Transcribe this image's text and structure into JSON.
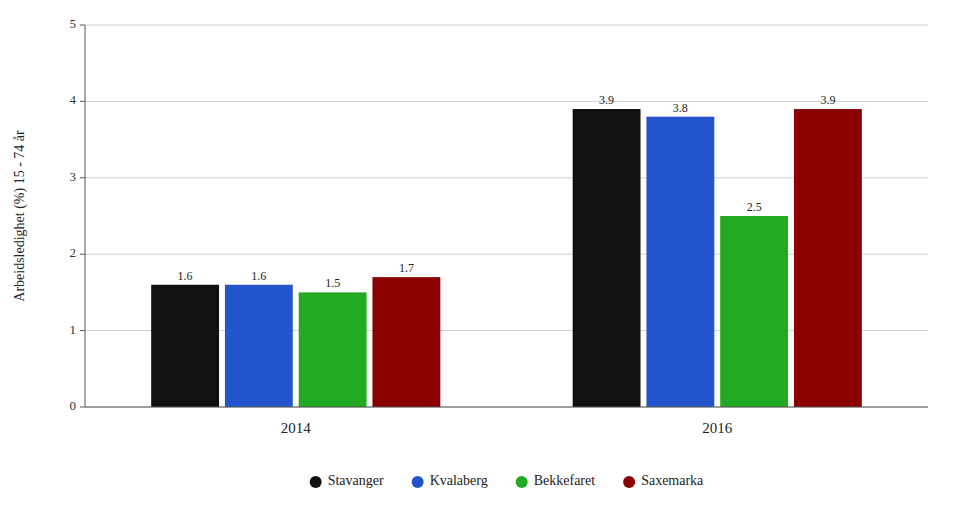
{
  "chart_data": {
    "type": "bar",
    "ylabel": "Arbeidsledighet (%) 15 - 74 år",
    "categories": [
      "2014",
      "2016"
    ],
    "series": [
      {
        "name": "Stavanger",
        "color": "#111111",
        "values": [
          1.6,
          3.9
        ]
      },
      {
        "name": "Kvalaberg",
        "color": "#2255cc",
        "values": [
          1.6,
          3.8
        ]
      },
      {
        "name": "Bekkefaret",
        "color": "#22aa22",
        "values": [
          1.5,
          2.5
        ]
      },
      {
        "name": "Saxemarka",
        "color": "#8b0000",
        "values": [
          1.7,
          3.9
        ]
      }
    ],
    "ylim": [
      0,
      5
    ],
    "yticks": [
      0,
      1,
      2,
      3,
      4,
      5
    ],
    "grid": true,
    "data_labels": true,
    "legend": "bottom"
  }
}
